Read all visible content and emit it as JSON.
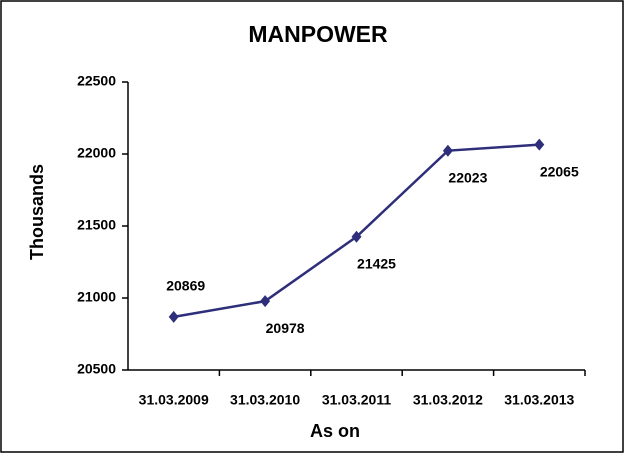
{
  "chart_data": {
    "type": "line",
    "title": "MANPOWER",
    "y_label": "Thousands",
    "x_label": "As on",
    "categories": [
      "31.03.2009",
      "31.03.2010",
      "31.03.2011",
      "31.03.2012",
      "31.03.2013"
    ],
    "series": [
      {
        "name": "Manpower",
        "color": "#2e2e7a",
        "values": [
          20869,
          20978,
          21425,
          22023,
          22065
        ]
      }
    ],
    "ylim": [
      20500,
      22500
    ],
    "yticks": [
      20500,
      21000,
      21500,
      22000,
      22500
    ]
  }
}
